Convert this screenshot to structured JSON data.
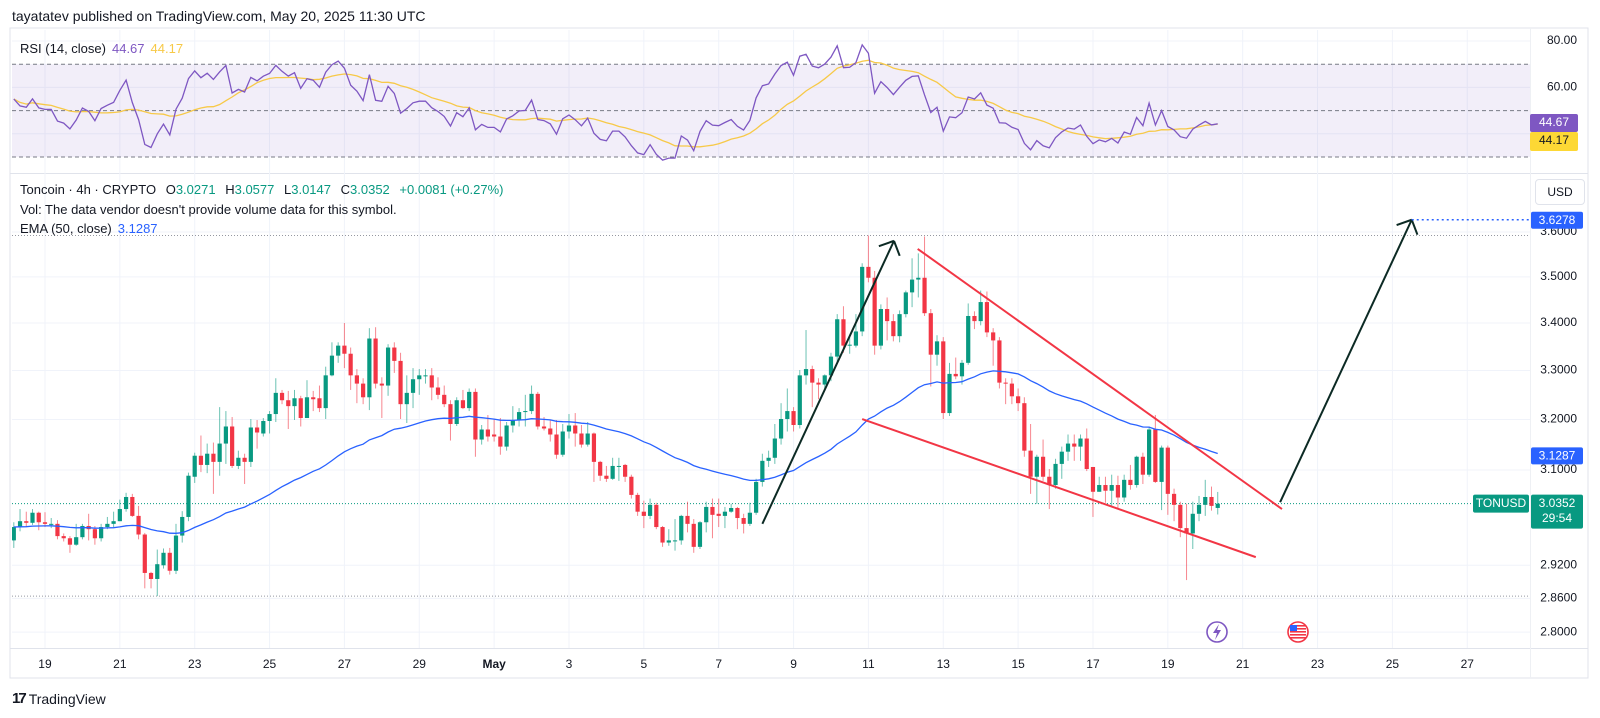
{
  "header": {
    "published": "tayatatev published on TradingView.com, May 20, 2025 11:30 UTC"
  },
  "rsi": {
    "label": "RSI (14, close)",
    "value": "44.67",
    "ma_value": "44.17",
    "length": 14,
    "levels": [
      70,
      50,
      30
    ],
    "y_ticks": [
      "80.00",
      "60.00"
    ],
    "y_tick_values": [
      80,
      60
    ],
    "line_color": "#7e57c2",
    "ma_color": "#f7c948"
  },
  "legend": {
    "symbol": "Toncoin · 4h · CRYPTO",
    "o_label": "O",
    "o": "3.0271",
    "h_label": "H",
    "h": "3.0577",
    "l_label": "L",
    "l": "3.0147",
    "c_label": "C",
    "c": "3.0352",
    "change": "+0.0081 (+0.27%)",
    "vol": "Vol: The data vendor doesn't provide volume data for this symbol.",
    "ema_label": "EMA (50, close)",
    "ema_value": "3.1287"
  },
  "price_axis": {
    "currency": "USD",
    "ticks": [
      "3.6000",
      "3.5000",
      "3.4000",
      "3.3000",
      "3.2000",
      "3.1000",
      "2.9200",
      "2.8600",
      "2.8000"
    ],
    "tick_values": [
      3.6,
      3.5,
      3.4,
      3.3,
      3.2,
      3.1,
      2.92,
      2.86,
      2.8
    ],
    "scale": "log",
    "target_label": "3.6278",
    "target_value": 3.6278,
    "ema_label": "3.1287",
    "ema_value": 3.1287,
    "symbol_tag": "TONUSD",
    "last_price": "3.0352",
    "last_value": 3.0352,
    "countdown": "29:54"
  },
  "time_axis": {
    "ticks": [
      {
        "label": "19",
        "date": "2025-04-19"
      },
      {
        "label": "21",
        "date": "2025-04-21"
      },
      {
        "label": "23",
        "date": "2025-04-23"
      },
      {
        "label": "25",
        "date": "2025-04-25"
      },
      {
        "label": "27",
        "date": "2025-04-27"
      },
      {
        "label": "29",
        "date": "2025-04-29"
      },
      {
        "label": "May",
        "date": "2025-05-01"
      },
      {
        "label": "3",
        "date": "2025-05-03"
      },
      {
        "label": "5",
        "date": "2025-05-05"
      },
      {
        "label": "7",
        "date": "2025-05-07"
      },
      {
        "label": "9",
        "date": "2025-05-09"
      },
      {
        "label": "11",
        "date": "2025-05-11"
      },
      {
        "label": "13",
        "date": "2025-05-13"
      },
      {
        "label": "15",
        "date": "2025-05-15"
      },
      {
        "label": "17",
        "date": "2025-05-17"
      },
      {
        "label": "19",
        "date": "2025-05-19"
      },
      {
        "label": "21",
        "date": "2025-05-21"
      },
      {
        "label": "23",
        "date": "2025-05-23"
      },
      {
        "label": "25",
        "date": "2025-05-25"
      },
      {
        "label": "27",
        "date": "2025-05-27"
      }
    ]
  },
  "events": [
    {
      "icon": "lightning-icon",
      "color": "#7e57c2"
    },
    {
      "icon": "us-flag-icon",
      "color": "#f23645"
    }
  ],
  "footer": {
    "brand": "TradingView"
  },
  "colors": {
    "up": "#089981",
    "down": "#f23645",
    "ema": "#2962ff",
    "trendline": "#f23645",
    "arrow": "#0c2a24",
    "rsi_band": "#7e57c2"
  },
  "chart_data": {
    "type": "candlestick",
    "symbol": "TONUSD",
    "interval": "4h",
    "start": "2025-04-18T04:00:00Z",
    "y_scale": "log",
    "indicators": [
      {
        "type": "EMA",
        "length": 50,
        "last": 3.1287
      },
      {
        "type": "RSI",
        "length": 14,
        "last": 44.67,
        "ma_last": 44.17
      }
    ],
    "ohlc": [
      [
        2.966,
        3.0,
        2.952,
        2.991
      ],
      [
        2.991,
        3.025,
        2.983,
        3.002
      ],
      [
        3.002,
        3.02,
        2.991,
        2.999
      ],
      [
        2.999,
        3.025,
        2.995,
        3.018
      ],
      [
        3.018,
        3.02,
        2.985,
        3.0
      ],
      [
        3.0,
        3.019,
        2.991,
        2.997
      ],
      [
        2.997,
        3.008,
        2.989,
        2.997
      ],
      [
        2.997,
        3.004,
        2.968,
        2.974
      ],
      [
        2.974,
        2.979,
        2.964,
        2.97
      ],
      [
        2.97,
        2.974,
        2.943,
        2.958
      ],
      [
        2.958,
        2.997,
        2.956,
        2.972
      ],
      [
        2.972,
        2.997,
        2.968,
        2.993
      ],
      [
        2.993,
        3.016,
        2.966,
        2.987
      ],
      [
        2.987,
        2.993,
        2.958,
        2.97
      ],
      [
        2.97,
        2.997,
        2.964,
        2.991
      ],
      [
        2.991,
        3.01,
        2.987,
        2.997
      ],
      [
        2.997,
        3.02,
        2.991,
        3.002
      ],
      [
        3.002,
        3.043,
        3.002,
        3.025
      ],
      [
        3.025,
        3.056,
        3.02,
        3.048
      ],
      [
        3.048,
        3.054,
        3.01,
        3.012
      ],
      [
        3.012,
        3.031,
        2.968,
        2.977
      ],
      [
        2.977,
        2.98,
        2.878,
        2.906
      ],
      [
        2.906,
        2.908,
        2.878,
        2.895
      ],
      [
        2.895,
        2.949,
        2.864,
        2.922
      ],
      [
        2.92,
        2.951,
        2.914,
        2.943
      ],
      [
        2.943,
        2.952,
        2.903,
        2.91
      ],
      [
        2.91,
        2.997,
        2.904,
        2.975
      ],
      [
        2.975,
        3.021,
        2.962,
        3.01
      ],
      [
        3.01,
        3.095,
        3.002,
        3.089
      ],
      [
        3.087,
        3.134,
        3.075,
        3.128
      ],
      [
        3.128,
        3.168,
        3.096,
        3.11
      ],
      [
        3.11,
        3.152,
        3.094,
        3.132
      ],
      [
        3.132,
        3.154,
        3.054,
        3.116
      ],
      [
        3.116,
        3.225,
        3.089,
        3.152
      ],
      [
        3.152,
        3.217,
        3.112,
        3.186
      ],
      [
        3.186,
        3.205,
        3.104,
        3.108
      ],
      [
        3.108,
        3.138,
        3.102,
        3.124
      ],
      [
        3.124,
        3.132,
        3.073,
        3.116
      ],
      [
        3.116,
        3.201,
        3.106,
        3.184
      ],
      [
        3.184,
        3.199,
        3.142,
        3.174
      ],
      [
        3.172,
        3.203,
        3.166,
        3.197
      ],
      [
        3.197,
        3.217,
        3.172,
        3.211
      ],
      [
        3.211,
        3.284,
        3.195,
        3.254
      ],
      [
        3.254,
        3.26,
        3.231,
        3.239
      ],
      [
        3.239,
        3.258,
        3.181,
        3.227
      ],
      [
        3.227,
        3.26,
        3.199,
        3.243
      ],
      [
        3.243,
        3.248,
        3.186,
        3.203
      ],
      [
        3.203,
        3.28,
        3.203,
        3.245
      ],
      [
        3.245,
        3.258,
        3.217,
        3.241
      ],
      [
        3.243,
        3.269,
        3.215,
        3.223
      ],
      [
        3.223,
        3.308,
        3.201,
        3.29
      ],
      [
        3.29,
        3.359,
        3.288,
        3.331
      ],
      [
        3.331,
        3.359,
        3.316,
        3.352
      ],
      [
        3.352,
        3.4,
        3.305,
        3.335
      ],
      [
        3.335,
        3.348,
        3.26,
        3.29
      ],
      [
        3.29,
        3.303,
        3.233,
        3.273
      ],
      [
        3.273,
        3.284,
        3.231,
        3.245
      ],
      [
        3.245,
        3.389,
        3.219,
        3.367
      ],
      [
        3.367,
        3.391,
        3.263,
        3.273
      ],
      [
        3.273,
        3.286,
        3.203,
        3.269
      ],
      [
        3.269,
        3.355,
        3.248,
        3.348
      ],
      [
        3.348,
        3.359,
        3.295,
        3.32
      ],
      [
        3.32,
        3.337,
        3.201,
        3.231
      ],
      [
        3.231,
        3.29,
        3.193,
        3.254
      ],
      [
        3.254,
        3.305,
        3.223,
        3.282
      ],
      [
        3.282,
        3.303,
        3.25,
        3.29
      ],
      [
        3.29,
        3.303,
        3.273,
        3.29
      ],
      [
        3.29,
        3.305,
        3.239,
        3.265
      ],
      [
        3.265,
        3.286,
        3.241,
        3.25
      ],
      [
        3.25,
        3.269,
        3.225,
        3.231
      ],
      [
        3.231,
        3.239,
        3.158,
        3.191
      ],
      [
        3.191,
        3.245,
        3.187,
        3.239
      ],
      [
        3.239,
        3.26,
        3.221,
        3.223
      ],
      [
        3.223,
        3.263,
        3.217,
        3.256
      ],
      [
        3.256,
        3.263,
        3.126,
        3.16
      ],
      [
        3.16,
        3.189,
        3.15,
        3.18
      ],
      [
        3.18,
        3.209,
        3.156,
        3.166
      ],
      [
        3.17,
        3.201,
        3.156,
        3.166
      ],
      [
        3.166,
        3.203,
        3.13,
        3.146
      ],
      [
        3.146,
        3.195,
        3.138,
        3.188
      ],
      [
        3.188,
        3.227,
        3.174,
        3.199
      ],
      [
        3.199,
        3.223,
        3.186,
        3.215
      ],
      [
        3.215,
        3.25,
        3.186,
        3.217
      ],
      [
        3.217,
        3.269,
        3.211,
        3.252
      ],
      [
        3.252,
        3.256,
        3.18,
        3.186
      ],
      [
        3.186,
        3.205,
        3.178,
        3.182
      ],
      [
        3.182,
        3.199,
        3.156,
        3.17
      ],
      [
        3.17,
        3.199,
        3.122,
        3.13
      ],
      [
        3.13,
        3.191,
        3.126,
        3.176
      ],
      [
        3.176,
        3.211,
        3.162,
        3.188
      ],
      [
        3.188,
        3.213,
        3.146,
        3.172
      ],
      [
        3.172,
        3.189,
        3.144,
        3.15
      ],
      [
        3.15,
        3.195,
        3.146,
        3.172
      ],
      [
        3.172,
        3.174,
        3.077,
        3.116
      ],
      [
        3.116,
        3.118,
        3.079,
        3.089
      ],
      [
        3.089,
        3.108,
        3.077,
        3.083
      ],
      [
        3.083,
        3.124,
        3.081,
        3.108
      ],
      [
        3.108,
        3.124,
        3.079,
        3.108
      ],
      [
        3.11,
        3.112,
        3.077,
        3.087
      ],
      [
        3.087,
        3.091,
        3.045,
        3.052
      ],
      [
        3.052,
        3.056,
        3.012,
        3.02
      ],
      [
        3.02,
        3.041,
        2.989,
        3.012
      ],
      [
        3.012,
        3.045,
        3.006,
        3.033
      ],
      [
        3.033,
        3.037,
        2.987,
        2.991
      ],
      [
        2.991,
        2.993,
        2.954,
        2.962
      ],
      [
        2.962,
        2.987,
        2.956,
        2.966
      ],
      [
        2.966,
        3.006,
        2.947,
        2.966
      ],
      [
        2.966,
        3.014,
        2.958,
        3.012
      ],
      [
        3.012,
        3.039,
        2.981,
        2.997
      ],
      [
        2.997,
        3.006,
        2.943,
        2.954
      ],
      [
        2.954,
        3.002,
        2.95,
        3.0
      ],
      [
        3.0,
        3.039,
        2.981,
        3.029
      ],
      [
        3.029,
        3.045,
        2.97,
        3.014
      ],
      [
        3.016,
        3.045,
        2.991,
        3.012
      ],
      [
        3.012,
        3.029,
        2.989,
        3.02
      ],
      [
        3.02,
        3.035,
        3.018,
        3.027
      ],
      [
        3.027,
        3.029,
        2.987,
        3.008
      ],
      [
        3.008,
        3.016,
        2.979,
        2.997
      ],
      [
        2.997,
        3.037,
        2.993,
        3.018
      ],
      [
        3.018,
        3.083,
        3.014,
        3.077
      ],
      [
        3.077,
        3.132,
        3.068,
        3.118
      ],
      [
        3.118,
        3.138,
        3.106,
        3.124
      ],
      [
        3.124,
        3.191,
        3.112,
        3.162
      ],
      [
        3.162,
        3.233,
        3.15,
        3.201
      ],
      [
        3.201,
        3.263,
        3.176,
        3.217
      ],
      [
        3.217,
        3.225,
        3.176,
        3.189
      ],
      [
        3.189,
        3.301,
        3.182,
        3.29
      ],
      [
        3.29,
        3.385,
        3.271,
        3.303
      ],
      [
        3.303,
        3.31,
        3.225,
        3.275
      ],
      [
        3.275,
        3.284,
        3.241,
        3.271
      ],
      [
        3.271,
        3.292,
        3.258,
        3.29
      ],
      [
        3.29,
        3.337,
        3.278,
        3.329
      ],
      [
        3.329,
        3.419,
        3.318,
        3.408
      ],
      [
        3.408,
        3.436,
        3.337,
        3.352
      ],
      [
        3.354,
        3.37,
        3.335,
        3.354
      ],
      [
        3.352,
        3.419,
        3.348,
        3.382
      ],
      [
        3.382,
        3.53,
        3.372,
        3.522
      ],
      [
        3.522,
        3.592,
        3.488,
        3.498
      ],
      [
        3.498,
        3.513,
        3.333,
        3.352
      ],
      [
        3.352,
        3.44,
        3.344,
        3.43
      ],
      [
        3.43,
        3.455,
        3.363,
        3.404
      ],
      [
        3.404,
        3.419,
        3.361,
        3.372
      ],
      [
        3.372,
        3.427,
        3.359,
        3.419
      ],
      [
        3.419,
        3.47,
        3.412,
        3.466
      ],
      [
        3.466,
        3.541,
        3.434,
        3.494
      ],
      [
        3.494,
        3.552,
        3.455,
        3.498
      ],
      [
        3.498,
        3.59,
        3.415,
        3.421
      ],
      [
        3.421,
        3.43,
        3.267,
        3.333
      ],
      [
        3.333,
        3.374,
        3.31,
        3.361
      ],
      [
        3.361,
        3.37,
        3.201,
        3.213
      ],
      [
        3.213,
        3.316,
        3.207,
        3.293
      ],
      [
        3.293,
        3.327,
        3.282,
        3.288
      ],
      [
        3.288,
        3.322,
        3.271,
        3.316
      ],
      [
        3.316,
        3.442,
        3.312,
        3.415
      ],
      [
        3.415,
        3.425,
        3.387,
        3.404
      ],
      [
        3.404,
        3.47,
        3.395,
        3.445
      ],
      [
        3.445,
        3.468,
        3.37,
        3.38
      ],
      [
        3.38,
        3.389,
        3.31,
        3.363
      ],
      [
        3.363,
        3.37,
        3.263,
        3.275
      ],
      [
        3.275,
        3.284,
        3.231,
        3.273
      ],
      [
        3.273,
        3.284,
        3.231,
        3.247
      ],
      [
        3.247,
        3.263,
        3.217,
        3.233
      ],
      [
        3.233,
        3.245,
        3.126,
        3.138
      ],
      [
        3.138,
        3.191,
        3.054,
        3.087
      ],
      [
        3.087,
        3.13,
        3.035,
        3.126
      ],
      [
        3.126,
        3.16,
        3.079,
        3.087
      ],
      [
        3.087,
        3.102,
        3.025,
        3.071
      ],
      [
        3.071,
        3.122,
        3.064,
        3.112
      ],
      [
        3.112,
        3.146,
        3.083,
        3.136
      ],
      [
        3.136,
        3.17,
        3.118,
        3.152
      ],
      [
        3.152,
        3.17,
        3.118,
        3.146
      ],
      [
        3.146,
        3.17,
        3.118,
        3.162
      ],
      [
        3.162,
        3.182,
        3.098,
        3.102
      ],
      [
        3.106,
        3.106,
        3.01,
        3.058
      ],
      [
        3.058,
        3.087,
        3.058,
        3.071
      ],
      [
        3.071,
        3.087,
        3.037,
        3.06
      ],
      [
        3.06,
        3.091,
        3.029,
        3.071
      ],
      [
        3.071,
        3.089,
        3.027,
        3.047
      ],
      [
        3.047,
        3.091,
        3.039,
        3.081
      ],
      [
        3.081,
        3.11,
        3.062,
        3.071
      ],
      [
        3.071,
        3.128,
        3.066,
        3.126
      ],
      [
        3.126,
        3.134,
        3.073,
        3.091
      ],
      [
        3.091,
        3.186,
        3.087,
        3.18
      ],
      [
        3.18,
        3.209,
        3.075,
        3.077
      ],
      [
        3.077,
        3.148,
        3.023,
        3.144
      ],
      [
        3.144,
        3.148,
        3.014,
        3.054
      ],
      [
        3.054,
        3.064,
        3.002,
        3.033
      ],
      [
        3.033,
        3.039,
        2.972,
        2.989
      ],
      [
        2.989,
        3.035,
        2.893,
        2.979
      ],
      [
        2.979,
        3.039,
        2.95,
        3.016
      ],
      [
        3.016,
        3.05,
        3.002,
        3.033
      ],
      [
        3.033,
        3.081,
        3.012,
        3.048
      ],
      [
        3.048,
        3.068,
        3.022,
        3.031
      ],
      [
        3.0271,
        3.0577,
        3.0147,
        3.0352
      ]
    ]
  }
}
